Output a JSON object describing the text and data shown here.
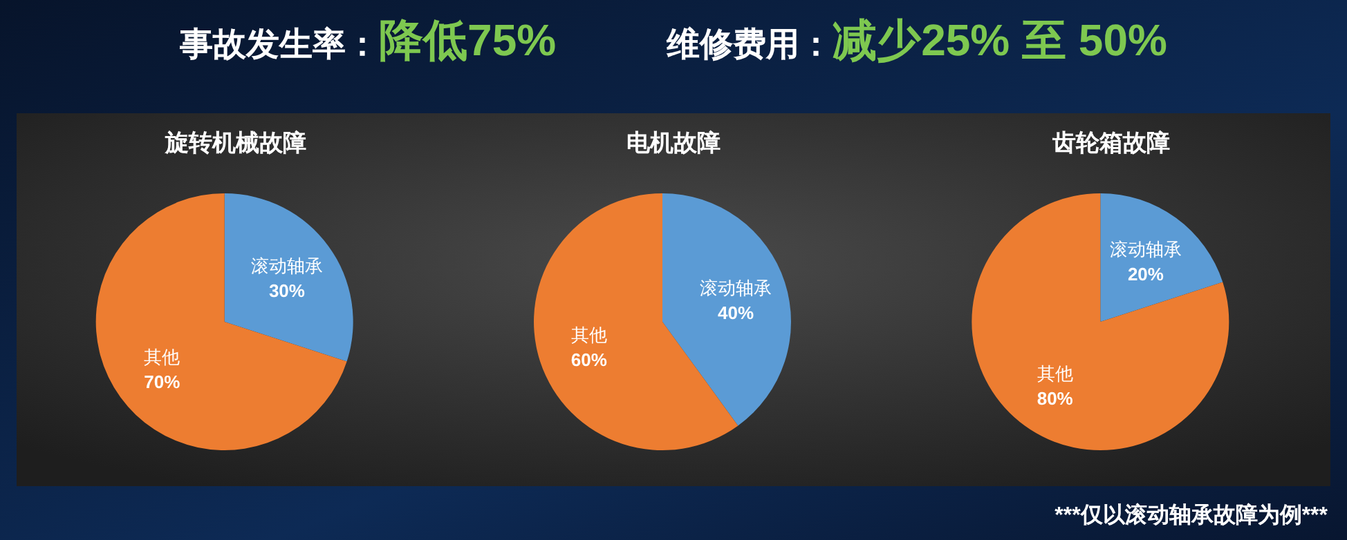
{
  "chart_data": [
    {
      "type": "other",
      "annotations": [
        "事故发生率：",
        "降低75%",
        "维修费用：",
        "减少25% 至 50%"
      ]
    },
    {
      "type": "pie",
      "title": "旋转机械故障",
      "categories": [
        "滚动轴承",
        "其他"
      ],
      "values": [
        30,
        70
      ],
      "value_labels": [
        "30%",
        "70%"
      ],
      "colors": [
        "#5b9bd5",
        "#ed7d31"
      ]
    },
    {
      "type": "pie",
      "title": "电机故障",
      "categories": [
        "滚动轴承",
        "其他"
      ],
      "values": [
        40,
        60
      ],
      "value_labels": [
        "40%",
        "60%"
      ],
      "colors": [
        "#5b9bd5",
        "#ed7d31"
      ]
    },
    {
      "type": "pie",
      "title": "齿轮箱故障",
      "categories": [
        "滚动轴承",
        "其他"
      ],
      "values": [
        20,
        80
      ],
      "value_labels": [
        "20%",
        "80%"
      ],
      "colors": [
        "#5b9bd5",
        "#ed7d31"
      ]
    },
    {
      "type": "other",
      "annotations": [
        "***仅以滚动轴承故障为例***"
      ]
    }
  ]
}
